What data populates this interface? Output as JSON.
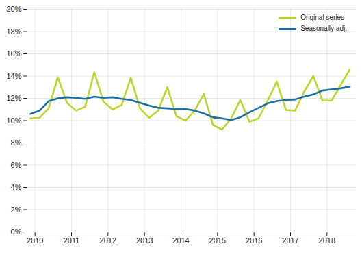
{
  "chart_data": {
    "type": "line",
    "x": [
      2009.875,
      2010.125,
      2010.375,
      2010.625,
      2010.875,
      2011.125,
      2011.375,
      2011.625,
      2011.875,
      2012.125,
      2012.375,
      2012.625,
      2012.875,
      2013.125,
      2013.375,
      2013.625,
      2013.875,
      2014.125,
      2014.375,
      2014.625,
      2014.875,
      2015.125,
      2015.375,
      2015.625,
      2015.875,
      2016.125,
      2016.375,
      2016.625,
      2016.875,
      2017.125,
      2017.375,
      2017.625,
      2017.875,
      2018.125,
      2018.375,
      2018.625
    ],
    "series": [
      {
        "name": "Original series",
        "color": "#bcd631",
        "values": [
          10.2,
          10.25,
          11.1,
          13.9,
          11.6,
          10.9,
          11.25,
          14.35,
          11.7,
          11.0,
          11.4,
          13.85,
          11.1,
          10.25,
          10.9,
          13.0,
          10.4,
          10.0,
          10.9,
          12.4,
          9.6,
          9.2,
          10.2,
          11.85,
          9.9,
          10.2,
          11.8,
          13.5,
          10.95,
          10.9,
          12.6,
          14.0,
          11.8,
          11.8,
          13.2,
          14.6
        ]
      },
      {
        "name": "Seasonally adj.",
        "color": "#1d6fa6",
        "values": [
          10.6,
          10.9,
          11.75,
          12.0,
          12.1,
          12.05,
          11.95,
          12.15,
          12.05,
          12.1,
          11.95,
          11.85,
          11.6,
          11.35,
          11.15,
          11.1,
          11.05,
          11.05,
          10.9,
          10.65,
          10.3,
          10.2,
          10.05,
          10.3,
          10.75,
          11.15,
          11.55,
          11.75,
          11.85,
          11.9,
          12.15,
          12.35,
          12.7,
          12.8,
          12.9,
          13.05
        ]
      }
    ],
    "xlim": [
      2009.8,
      2018.8
    ],
    "xticks": [
      2010,
      2011,
      2012,
      2013,
      2014,
      2015,
      2016,
      2017,
      2018
    ],
    "ylim": [
      0,
      20
    ],
    "yticks": [
      {
        "value": 0,
        "label": "0%"
      },
      {
        "value": 2,
        "label": "2%"
      },
      {
        "value": 4,
        "label": "4%"
      },
      {
        "value": 6,
        "label": "6%"
      },
      {
        "value": 8,
        "label": "8%"
      },
      {
        "value": 10,
        "label": "10%"
      },
      {
        "value": 12,
        "label": "12%"
      },
      {
        "value": 14,
        "label": "14%"
      },
      {
        "value": 16,
        "label": "16%"
      },
      {
        "value": 18,
        "label": "18%"
      },
      {
        "value": 20,
        "label": "20%"
      }
    ],
    "grid": true,
    "legend": "top-right"
  }
}
